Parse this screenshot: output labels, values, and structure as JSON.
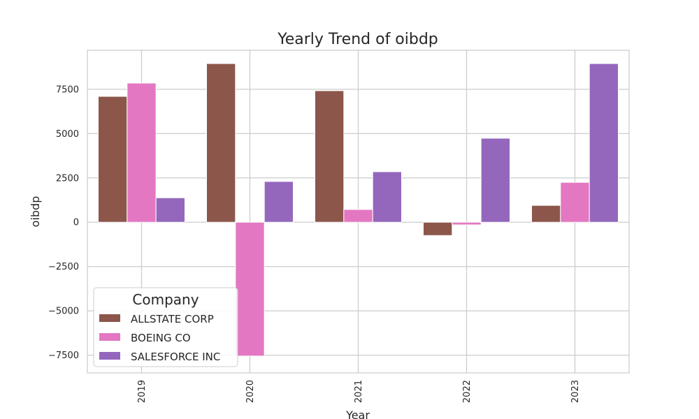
{
  "chart_data": {
    "type": "bar",
    "title": "Yearly Trend of oibdp",
    "xlabel": "Year",
    "ylabel": "oibdp",
    "categories": [
      "2019",
      "2020",
      "2021",
      "2022",
      "2023"
    ],
    "series": [
      {
        "name": "ALLSTATE CORP",
        "color": "#8c564b",
        "values": [
          7100,
          8950,
          7420,
          -750,
          950
        ]
      },
      {
        "name": "BOEING CO",
        "color": "#e377c2",
        "values": [
          7850,
          -7550,
          720,
          -150,
          2250
        ]
      },
      {
        "name": "SALESFORCE INC",
        "color": "#9467bd",
        "values": [
          1380,
          2300,
          2850,
          4740,
          8950
        ]
      }
    ],
    "ylim": [
      -8500,
      9700
    ],
    "yticks": [
      -7500,
      -5000,
      -2500,
      0,
      2500,
      5000,
      7500
    ],
    "ytick_labels": [
      "−7500",
      "−5000",
      "−2500",
      "0",
      "2500",
      "5000",
      "7500"
    ],
    "grid": true,
    "legend": {
      "title": "Company",
      "placement": "lower-left"
    }
  }
}
